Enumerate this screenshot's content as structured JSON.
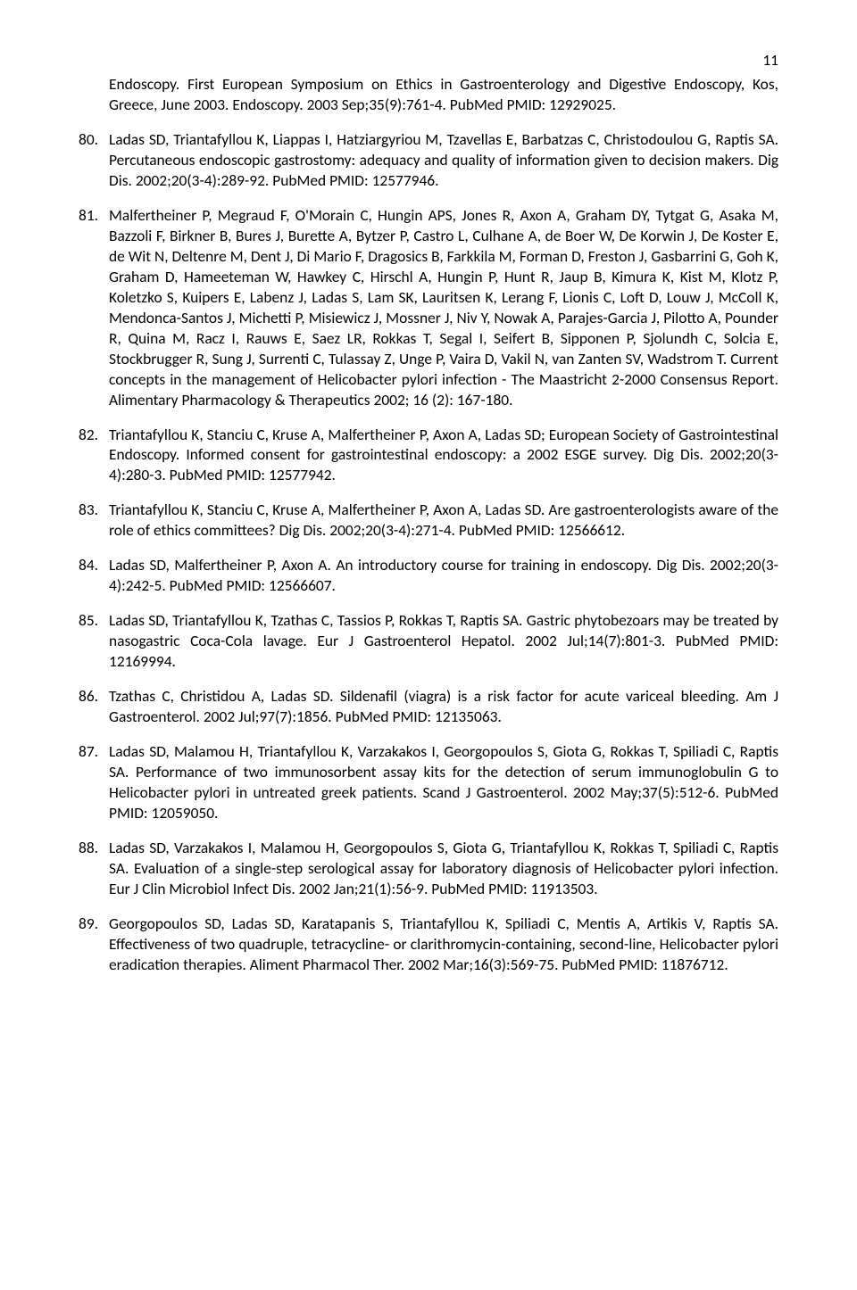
{
  "page_number": "11",
  "font_family": "Calibri",
  "font_size_pt": 11,
  "text_color": "#000000",
  "background_color": "#ffffff",
  "references": [
    {
      "num": "",
      "text": "Endoscopy. First European Symposium on Ethics in Gastroenterology and Digestive Endoscopy, Kos, Greece, June 2003. Endoscopy. 2003 Sep;35(9):761-4. PubMed PMID: 12929025."
    },
    {
      "num": "80.",
      "text": "Ladas SD, Triantafyllou K, Liappas I, Hatziargyriou M, Tzavellas E, Barbatzas C, Christodoulou G, Raptis SA. Percutaneous endoscopic gastrostomy: adequacy and quality of information given to decision makers. Dig Dis. 2002;20(3-4):289-92. PubMed PMID: 12577946."
    },
    {
      "num": "81.",
      "text": "Malfertheiner P, Megraud F, O'Morain C, Hungin APS, Jones R, Axon A, Graham DY, Tytgat G, Asaka M, Bazzoli F, Birkner B, Bures J, Burette A, Bytzer P, Castro L, Culhane A, de Boer W, De Korwin J, De Koster E, de Wit N, Deltenre M, Dent J, Di Mario F, Dragosics B, Farkkila M, Forman D, Freston J, Gasbarrini G, Goh K, Graham D, Hameeteman W, Hawkey C, Hirschl A, Hungin P, Hunt R, Jaup B, Kimura K, Kist M, Klotz P, Koletzko S, Kuipers E, Labenz J, Ladas S, Lam SK, Lauritsen K, Lerang F, Lionis C, Loft D, Louw J, McColl K, Mendonca-Santos J, Michetti P, Misiewicz J, Mossner J, Niv Y, Nowak A, Parajes-Garcia J, Pilotto A, Pounder R, Quina M, Racz I, Rauws E, Saez LR, Rokkas T, Segal I, Seifert B, Sipponen P, Sjolundh C, Solcia E, Stockbrugger R, Sung J, Surrenti C, Tulassay Z, Unge P, Vaira D, Vakil N, van Zanten SV, Wadstrom T. Current concepts in the management of Helicobacter pylori infection - The Maastricht 2-2000 Consensus Report. Alimentary Pharmacology & Therapeutics 2002; 16 (2): 167-180."
    },
    {
      "num": "82.",
      "text": "Triantafyllou K, Stanciu C, Kruse A, Malfertheiner P, Axon A, Ladas SD; European Society of Gastrointestinal Endoscopy. Informed consent for gastrointestinal endoscopy: a 2002 ESGE survey. Dig Dis. 2002;20(3-4):280-3. PubMed PMID: 12577942."
    },
    {
      "num": "83.",
      "text": "Triantafyllou K, Stanciu C, Kruse A, Malfertheiner P, Axon A, Ladas SD. Are gastroenterologists aware of the role of ethics committees? Dig Dis. 2002;20(3-4):271-4. PubMed PMID: 12566612."
    },
    {
      "num": "84.",
      "text": "Ladas SD, Malfertheiner P, Axon A. An introductory course for training in endoscopy. Dig Dis. 2002;20(3-4):242-5. PubMed PMID: 12566607."
    },
    {
      "num": "85.",
      "text": "Ladas SD, Triantafyllou K, Tzathas C, Tassios P, Rokkas T, Raptis SA. Gastric phytobezoars may be treated by nasogastric Coca-Cola lavage. Eur J Gastroenterol Hepatol. 2002 Jul;14(7):801-3. PubMed PMID: 12169994."
    },
    {
      "num": "86.",
      "text": "Tzathas C, Christidou A, Ladas SD. Sildenafil (viagra) is a risk factor for acute variceal bleeding. Am J Gastroenterol. 2002 Jul;97(7):1856. PubMed PMID: 12135063."
    },
    {
      "num": "87.",
      "text": "Ladas SD, Malamou H, Triantafyllou K, Varzakakos I, Georgopoulos S, Giota G, Rokkas T, Spiliadi C, Raptis SA. Performance of two immunosorbent assay kits for the detection of serum immunoglobulin G to Helicobacter pylori in untreated greek patients. Scand J Gastroenterol. 2002 May;37(5):512-6. PubMed PMID: 12059050."
    },
    {
      "num": "88.",
      "text": "Ladas SD, Varzakakos I, Malamou H, Georgopoulos S, Giota G, Triantafyllou K, Rokkas T, Spiliadi C, Raptis SA. Evaluation of a single-step serological assay for laboratory diagnosis of Helicobacter pylori infection. Eur J Clin Microbiol Infect Dis. 2002 Jan;21(1):56-9. PubMed PMID: 11913503."
    },
    {
      "num": "89.",
      "text": "Georgopoulos SD, Ladas SD, Karatapanis S, Triantafyllou K, Spiliadi C, Mentis A, Artikis V, Raptis SA. Effectiveness of two quadruple, tetracycline- or clarithromycin-containing, second-line, Helicobacter pylori eradication therapies. Aliment Pharmacol Ther. 2002 Mar;16(3):569-75. PubMed PMID: 11876712."
    }
  ]
}
